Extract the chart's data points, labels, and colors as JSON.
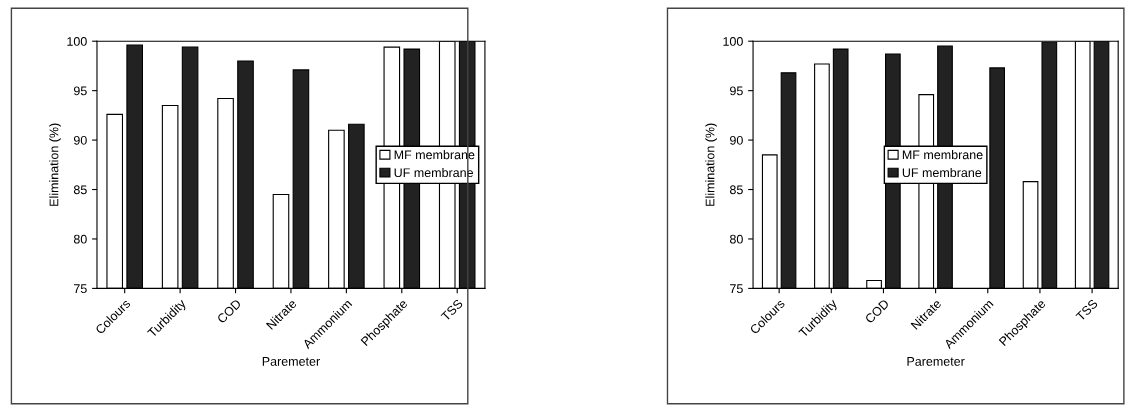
{
  "chart_data": [
    {
      "type": "bar",
      "xlabel": "Paremeter",
      "ylabel": "Elimination (%)",
      "categories": [
        "Colours",
        "Turbidity",
        "COD",
        "Nitrate",
        "Ammonium",
        "Phosphate",
        "TSS"
      ],
      "series": [
        {
          "name": "MF membrane",
          "color": "#ffffff",
          "values": [
            92.6,
            93.5,
            94.2,
            84.5,
            91.0,
            99.4,
            100
          ]
        },
        {
          "name": "UF membrane",
          "color": "#222222",
          "values": [
            99.6,
            99.4,
            98.0,
            97.1,
            91.6,
            99.2,
            100
          ]
        }
      ],
      "ylim": [
        75,
        100
      ],
      "yticks": [
        75,
        80,
        85,
        90,
        95,
        100
      ],
      "grid": false,
      "legend": "right"
    },
    {
      "type": "bar",
      "xlabel": "Paremeter",
      "ylabel": "Elimination (%)",
      "categories": [
        "Colours",
        "Turbidity",
        "COD",
        "Nitrate",
        "Ammonium",
        "Phosphate",
        "TSS"
      ],
      "series": [
        {
          "name": "MF membrane",
          "color": "#ffffff",
          "values": [
            88.5,
            97.7,
            75.8,
            94.6,
            null,
            85.8,
            100
          ]
        },
        {
          "name": "UF membrane",
          "color": "#222222",
          "values": [
            96.8,
            99.2,
            98.7,
            99.5,
            97.3,
            99.9,
            100
          ]
        }
      ],
      "ylim": [
        75,
        100
      ],
      "yticks": [
        75,
        80,
        85,
        90,
        95,
        100
      ],
      "grid": false,
      "legend": "center"
    }
  ]
}
